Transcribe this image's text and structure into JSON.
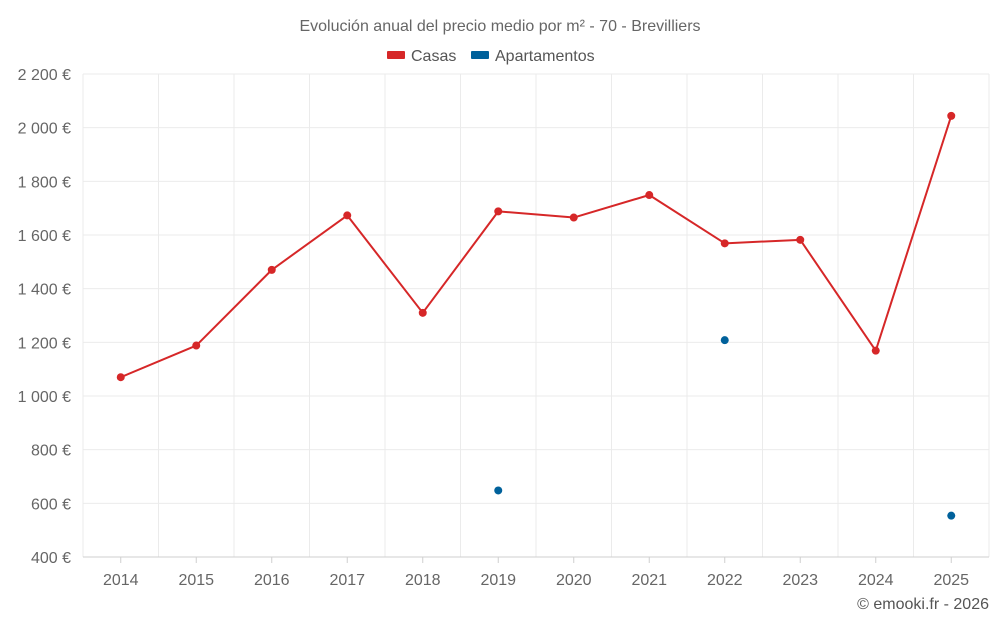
{
  "chart_data": {
    "type": "line",
    "title": "Evolución anual del precio medio por m² - 70 - Brevilliers",
    "categories": [
      "2014",
      "2015",
      "2016",
      "2017",
      "2018",
      "2019",
      "2020",
      "2021",
      "2022",
      "2023",
      "2024",
      "2025"
    ],
    "series": [
      {
        "name": "Casas",
        "color": "#d62728",
        "style": "line-markers",
        "values": [
          1070,
          1188,
          1470,
          1673,
          1310,
          1688,
          1665,
          1749,
          1569,
          1582,
          1169,
          2044
        ]
      },
      {
        "name": "Apartamentos",
        "color": "#00619b",
        "style": "markers",
        "values": [
          null,
          null,
          null,
          null,
          null,
          648,
          null,
          null,
          1208,
          null,
          null,
          554
        ]
      }
    ],
    "ylim": [
      400,
      2200
    ],
    "yticks": [
      400,
      600,
      800,
      1000,
      1200,
      1400,
      1600,
      1800,
      2000,
      2200
    ],
    "ytick_labels": [
      "400 €",
      "600 €",
      "800 €",
      "1 000 €",
      "1 200 €",
      "1 400 €",
      "1 600 €",
      "1 800 €",
      "2 000 €",
      "2 200 €"
    ],
    "xlabel": "",
    "ylabel": "",
    "grid": true,
    "legend_position": "top-center"
  },
  "credit": "© emooki.fr - 2026"
}
